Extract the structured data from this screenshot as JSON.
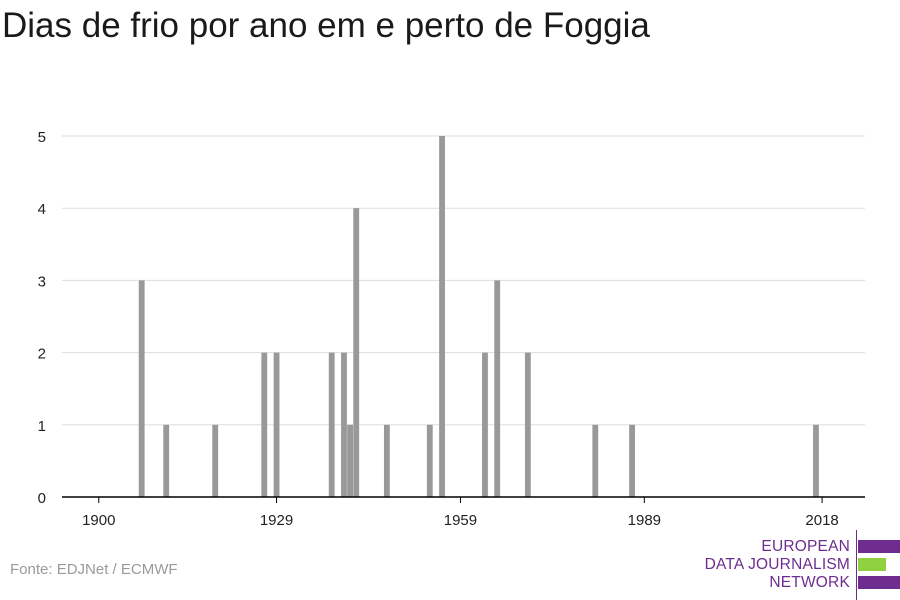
{
  "title": "Dias de frio por ano em e perto de Foggia",
  "source": "Fonte: EDJNet / ECMWF",
  "logo": {
    "line1": "EUROPEAN",
    "line2": "DATA JOURNALISM",
    "line3": "NETWORK",
    "purple": "#6e2c8f",
    "green": "#8fd13f"
  },
  "colors": {
    "bar": "#999999",
    "grid": "#dddddd",
    "axis": "#000000",
    "tick_text": "#222222"
  },
  "chart_data": {
    "type": "bar",
    "title": "Dias de frio por ano em e perto de Foggia",
    "xlabel": "",
    "ylabel": "",
    "xlim": [
      1894,
      2025
    ],
    "ylim": [
      0,
      5
    ],
    "x_ticks": [
      1900,
      1929,
      1959,
      1989,
      2018
    ],
    "y_ticks": [
      0,
      1,
      2,
      3,
      4,
      5
    ],
    "grid": true,
    "x": [
      1907,
      1911,
      1919,
      1927,
      1929,
      1938,
      1940,
      1941,
      1942,
      1947,
      1954,
      1956,
      1963,
      1965,
      1970,
      1981,
      1987,
      2017
    ],
    "values": [
      3,
      1,
      1,
      2,
      2,
      2,
      2,
      1,
      4,
      1,
      1,
      5,
      2,
      3,
      2,
      1,
      1,
      1
    ]
  }
}
